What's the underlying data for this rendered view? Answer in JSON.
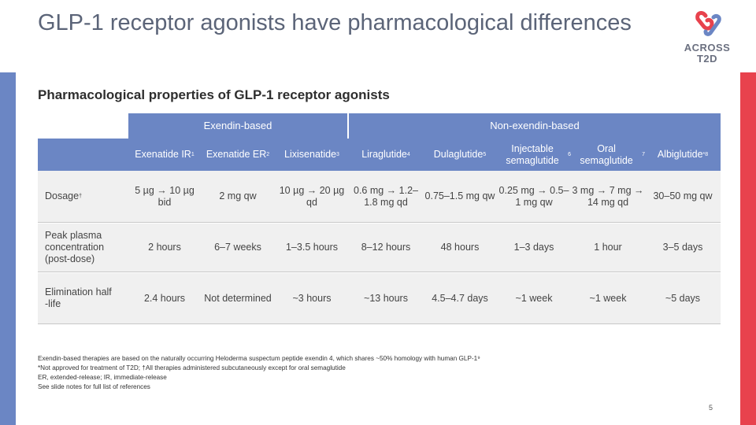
{
  "title": "GLP-1 receptor agonists have pharmacological differences",
  "logo": {
    "line1": "ACROSS",
    "line2": "T2D"
  },
  "subtitle": "Pharmacological properties of GLP-1 receptor agonists",
  "groups": {
    "exendin": "Exendin-based",
    "non_exendin": "Non-exendin-based"
  },
  "columns": [
    {
      "name": "Exenatide IR",
      "sup": "1"
    },
    {
      "name": "Exenatide ER",
      "sup": "2"
    },
    {
      "name": "Lixisenatide",
      "sup": "3"
    },
    {
      "name": "Liraglutide",
      "sup": "4"
    },
    {
      "name": "Dulaglutide",
      "sup": "5"
    },
    {
      "name": "Injectable semaglutide",
      "sup": "6"
    },
    {
      "name": "Oral semaglutide",
      "sup": "7"
    },
    {
      "name": "Albiglutide",
      "sup": "*8"
    }
  ],
  "rows": [
    {
      "label": "Dosage",
      "sup": "†",
      "values": [
        "5 µg → 10 µg bid",
        "2 mg qw",
        "10 µg → 20 µg qd",
        "0.6 mg → 1.2–1.8 mg qd",
        "0.75–1.5 mg qw",
        "0.25 mg → 0.5–1 mg qw",
        "3 mg → 7 mg → 14 mg qd",
        "30–50 mg qw"
      ]
    },
    {
      "label": "Peak plasma concentration (post‑dose)",
      "sup": "",
      "values": [
        "2 hours",
        "6–7 weeks",
        "1–3.5 hours",
        "8–12 hours",
        "48 hours",
        "1–3 days",
        "1 hour",
        "3–5 days"
      ]
    },
    {
      "label": "Elimination half ‑life",
      "sup": "",
      "values": [
        "2.4 hours",
        "Not determined",
        "~3 hours",
        "~13 hours",
        "4.5–4.7 days",
        "~1 week",
        "~1 week",
        "~5 days"
      ]
    }
  ],
  "footnotes": [
    "Exendin-based therapies are based on the naturally occurring Heloderma suspectum peptide exendin 4, which shares ~50% homology with human GLP-1⁹",
    "*Not approved for treatment of T2D; †All therapies administered subcutaneously except for oral semaglutide",
    "ER, extended-release; IR, immediate-release",
    "See slide notes for full list of references"
  ],
  "page_number": "5",
  "colors": {
    "header": "#6b86c4",
    "accent_red": "#e8424d",
    "title": "#5b6478"
  }
}
